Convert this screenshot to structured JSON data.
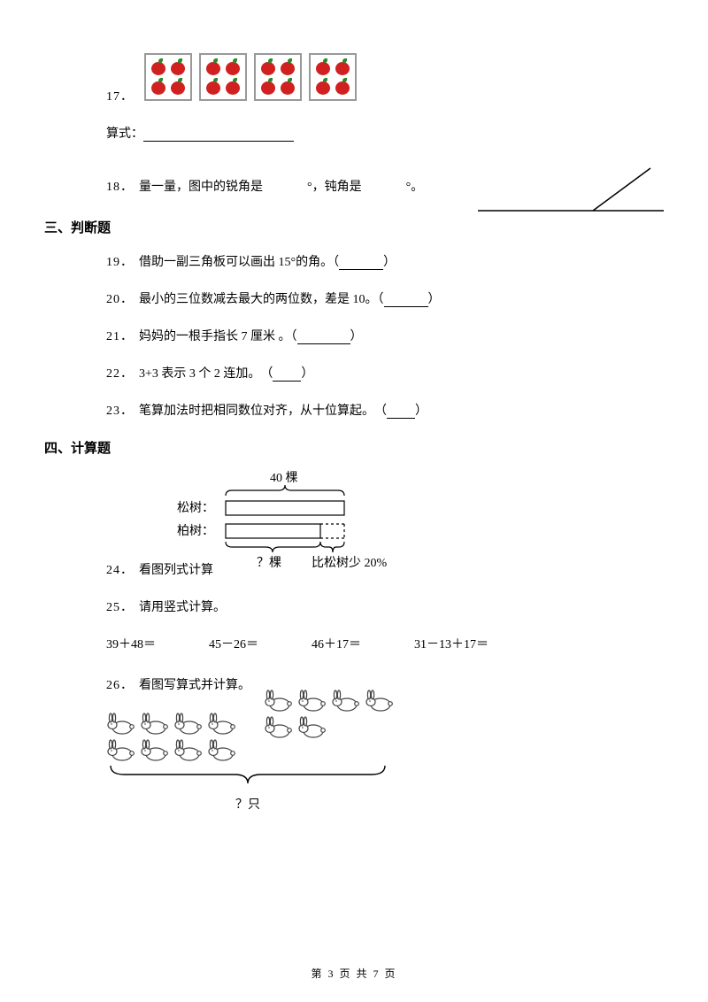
{
  "q17": {
    "num": "17．",
    "formula_label": "算式：",
    "apple_groups": 4,
    "apples_per_group": 4,
    "apple_color": "#d02020",
    "leaf_color": "#2a8a2a",
    "card_border": "#999999"
  },
  "q18": {
    "num": "18．",
    "text_a": "量一量，图中的锐角是",
    "deg1": "°",
    "mid": "，钝角是",
    "deg2": "°",
    "dot": "。",
    "line_color": "#000000"
  },
  "section3": "三、判断题",
  "q19": {
    "num": "19．",
    "text": "借助一副三角板可以画出 15°的角。（",
    "tail": "）"
  },
  "q20": {
    "num": "20．",
    "text": "最小的三位数减去最大的两位数，差是 10。（",
    "tail": "）"
  },
  "q21": {
    "num": "21．",
    "text": "妈妈的一根手指长 7 厘米 。（",
    "tail": "）"
  },
  "q22": {
    "num": "22．",
    "text": "3+3 表示 3 个 2 连加。　（",
    "tail": "）"
  },
  "q23": {
    "num": "23．",
    "text": "笔算加法时把相同数位对齐，从十位算起。　（",
    "tail": "）"
  },
  "section4": "四、计算题",
  "q24": {
    "num": "24．",
    "label": "看图列式计算",
    "diagram": {
      "top_label": "40 棵",
      "row1": "松树：",
      "row2": "柏树：",
      "q_label": "？棵",
      "cmp_label": "比松树少 20%",
      "bracket_color": "#000000"
    }
  },
  "q25": {
    "num": "25．",
    "label": "请用竖式计算。",
    "items": [
      "39＋48＝",
      "45－26＝",
      "46＋17＝",
      "31－13＋17＝"
    ]
  },
  "q26": {
    "num": "26．",
    "label": "看图写算式并计算。",
    "group_a_rows": [
      4,
      4
    ],
    "group_b_rows": [
      4,
      2
    ],
    "q_label": "？只",
    "rabbit_stroke": "#444444",
    "rabbit_fill": "#ffffff"
  },
  "footer": {
    "prefix": "第 ",
    "cur": "3",
    "mid": " 页 共 ",
    "total": "7",
    "suffix": " 页"
  }
}
